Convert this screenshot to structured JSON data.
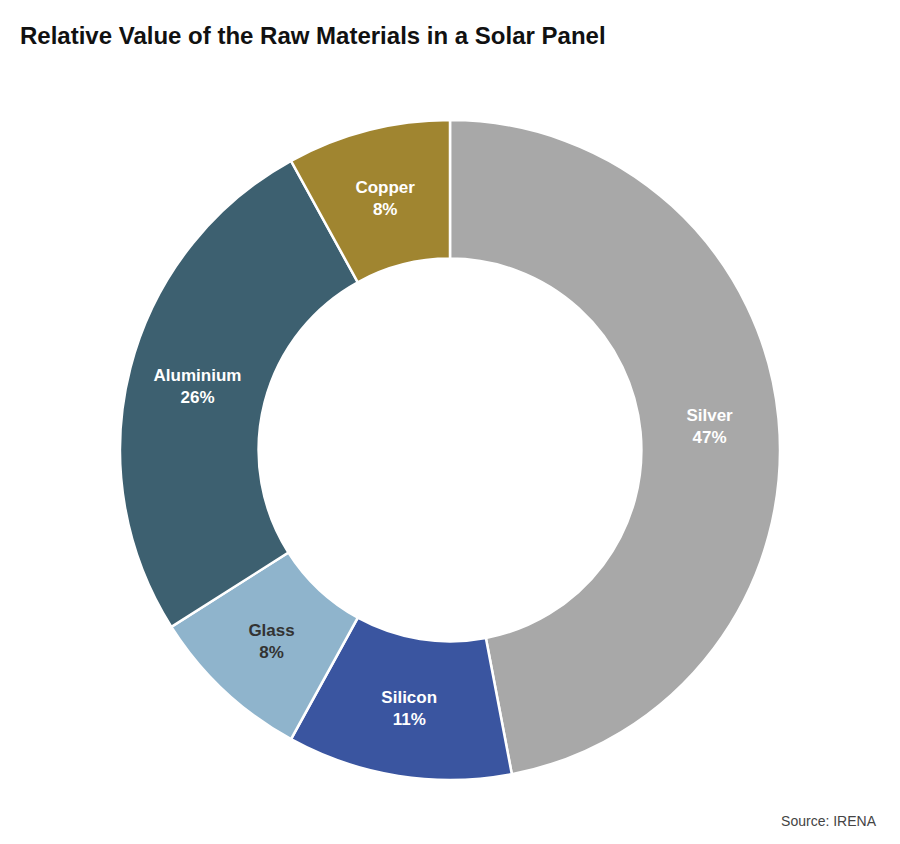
{
  "chart_data": {
    "type": "donut",
    "title": "Relative Value of the Raw Materials in a Solar Panel",
    "source": "Source: IRENA",
    "categories": [
      "Silver",
      "Silicon",
      "Glass",
      "Aluminium",
      "Copper"
    ],
    "values": [
      47,
      11,
      8,
      26,
      8
    ],
    "value_labels": [
      "47%",
      "11%",
      "8%",
      "26%",
      "8%"
    ],
    "colors": [
      "#a8a8a8",
      "#3a55a0",
      "#8fb4cc",
      "#3d6070",
      "#a08530"
    ],
    "data_labels": true
  }
}
